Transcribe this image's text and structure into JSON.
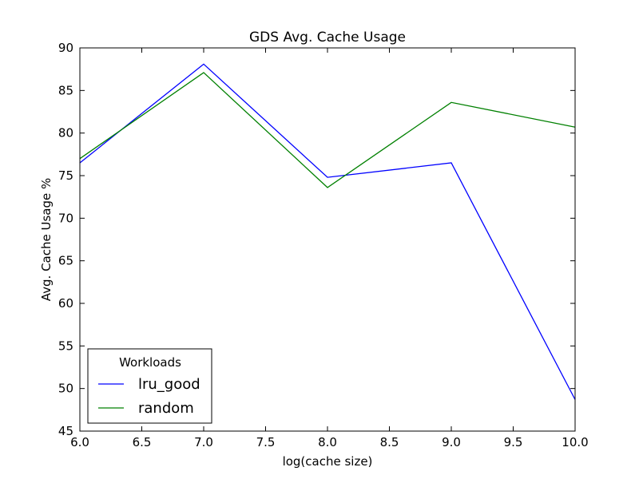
{
  "chart_data": {
    "type": "line",
    "title": "GDS Avg. Cache Usage",
    "xlabel": "log(cache size)",
    "ylabel": "Avg. Cache Usage %",
    "xlim": [
      6.0,
      10.0
    ],
    "ylim": [
      45,
      90
    ],
    "xticks": [
      "6.0",
      "6.5",
      "7.0",
      "7.5",
      "8.0",
      "8.5",
      "9.0",
      "9.5",
      "10.0"
    ],
    "yticks": [
      "45",
      "50",
      "55",
      "60",
      "65",
      "70",
      "75",
      "80",
      "85",
      "90"
    ],
    "x": [
      6,
      7,
      8,
      9,
      10
    ],
    "series": [
      {
        "name": "lru_good",
        "color": "#0000ff",
        "values": [
          76.5,
          88.1,
          74.8,
          76.5,
          48.7
        ]
      },
      {
        "name": "random",
        "color": "#008000",
        "values": [
          77.0,
          87.1,
          73.6,
          83.6,
          80.7
        ]
      }
    ],
    "legend": {
      "title": "Workloads",
      "position": "lower-left"
    },
    "grid": false
  }
}
